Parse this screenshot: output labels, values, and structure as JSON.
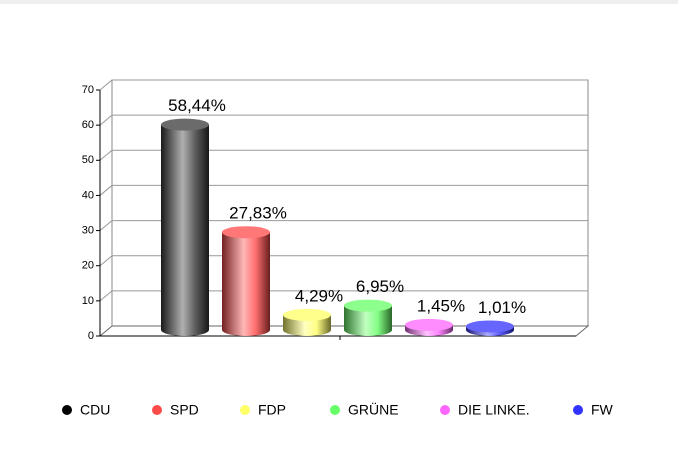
{
  "chart_data": {
    "type": "bar",
    "categories": [
      "CDU",
      "SPD",
      "FDP",
      "GRÜNE",
      "DIE LINKE.",
      "FW"
    ],
    "values": [
      58.44,
      27.83,
      4.29,
      6.95,
      1.45,
      1.01
    ],
    "value_labels": [
      "58,44%",
      "27,83%",
      "4,29%",
      "6,95%",
      "1,45%",
      "1,01%"
    ],
    "colors": [
      "#3a3a3a",
      "#ff4a4a",
      "#ffff66",
      "#66ff66",
      "#ff66ff",
      "#3333ff"
    ],
    "ylim": [
      0,
      70
    ],
    "yticks": [
      0,
      10,
      20,
      30,
      40,
      50,
      60,
      70
    ],
    "grid": true,
    "legend": "bottom"
  }
}
